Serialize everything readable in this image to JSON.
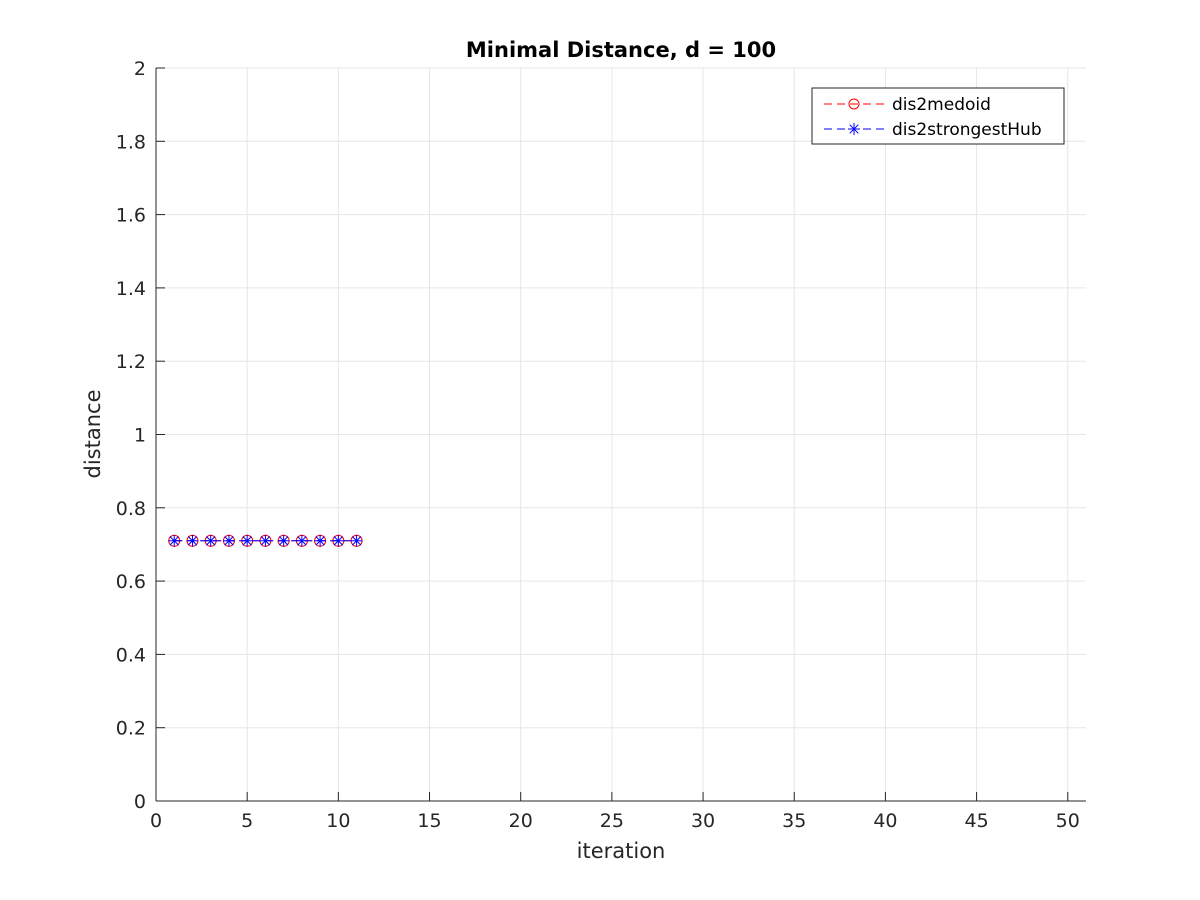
{
  "chart_data": {
    "type": "line",
    "title": "Minimal Distance, d = 100",
    "xlabel": "iteration",
    "ylabel": "distance",
    "xlim": [
      0,
      51
    ],
    "ylim": [
      0,
      2
    ],
    "xticks": [
      0,
      5,
      10,
      15,
      20,
      25,
      30,
      35,
      40,
      45,
      50
    ],
    "yticks": [
      0,
      0.2,
      0.4,
      0.6,
      0.8,
      1,
      1.2,
      1.4,
      1.6,
      1.8,
      2
    ],
    "xtick_labels": [
      "0",
      "5",
      "10",
      "15",
      "20",
      "25",
      "30",
      "35",
      "40",
      "45",
      "50"
    ],
    "ytick_labels": [
      "0",
      "0.2",
      "0.4",
      "0.6",
      "0.8",
      "1",
      "1.2",
      "1.4",
      "1.6",
      "1.8",
      "2"
    ],
    "grid": true,
    "legend_position": "top-right",
    "x": [
      1,
      2,
      3,
      4,
      5,
      6,
      7,
      8,
      9,
      10,
      11
    ],
    "series": [
      {
        "name": "dis2medoid",
        "color": "#ff0000",
        "line_style": "dashed",
        "marker": "circle",
        "values": [
          0.71,
          0.71,
          0.71,
          0.71,
          0.71,
          0.71,
          0.71,
          0.71,
          0.71,
          0.71,
          0.71
        ]
      },
      {
        "name": "dis2strongestHub",
        "color": "#0000ff",
        "line_style": "dashed",
        "marker": "asterisk",
        "values": [
          0.71,
          0.71,
          0.71,
          0.71,
          0.71,
          0.71,
          0.71,
          0.71,
          0.71,
          0.71,
          0.71
        ]
      }
    ]
  }
}
